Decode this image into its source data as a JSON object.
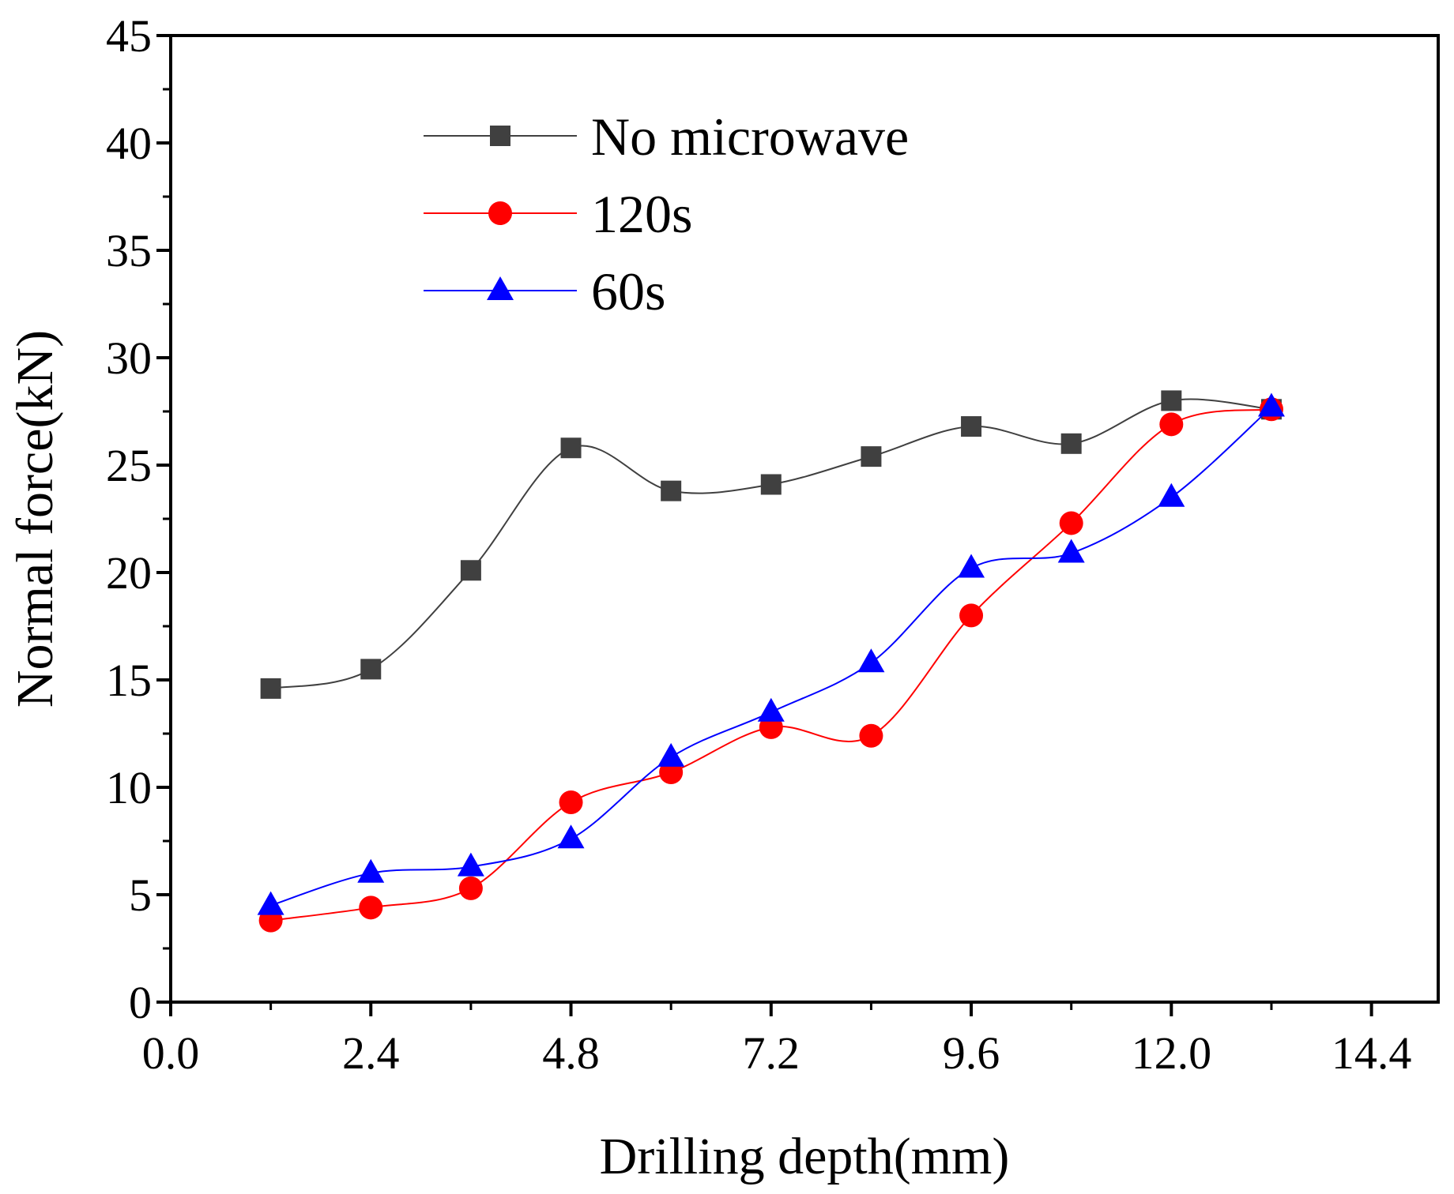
{
  "chart_data": {
    "type": "line",
    "title": "",
    "xlabel": "Drilling depth(mm)",
    "ylabel": "Normal force(kN)",
    "xlim": [
      0.0,
      15.2
    ],
    "ylim": [
      0,
      45
    ],
    "xticks": [
      0.0,
      2.4,
      4.8,
      7.2,
      9.6,
      12.0,
      14.4
    ],
    "xtick_labels": [
      "0.0",
      "2.4",
      "4.8",
      "7.2",
      "9.6",
      "12.0",
      "14.4"
    ],
    "yticks": [
      0,
      5,
      10,
      15,
      20,
      25,
      30,
      35,
      40,
      45
    ],
    "ytick_labels": [
      "0",
      "5",
      "10",
      "15",
      "20",
      "25",
      "30",
      "35",
      "40",
      "45"
    ],
    "grid": false,
    "legend_position": "top-left",
    "x": [
      1.2,
      2.4,
      3.6,
      4.8,
      6.0,
      7.2,
      8.4,
      9.6,
      10.8,
      12.0,
      13.2
    ],
    "series": [
      {
        "name": "No microwave",
        "marker": "square",
        "color": "#404040",
        "values": [
          14.6,
          15.5,
          20.1,
          25.8,
          23.8,
          24.1,
          25.4,
          26.8,
          26.0,
          28.0,
          27.6
        ]
      },
      {
        "name": "120s",
        "marker": "circle",
        "color": "#ff0000",
        "values": [
          3.8,
          4.4,
          5.3,
          9.3,
          10.7,
          12.8,
          12.4,
          18.0,
          22.3,
          26.9,
          27.6
        ]
      },
      {
        "name": "60s",
        "marker": "triangle",
        "color": "#0000ff",
        "values": [
          4.5,
          6.0,
          6.3,
          7.6,
          11.4,
          13.5,
          15.8,
          20.2,
          20.9,
          23.5,
          27.7
        ]
      }
    ]
  }
}
